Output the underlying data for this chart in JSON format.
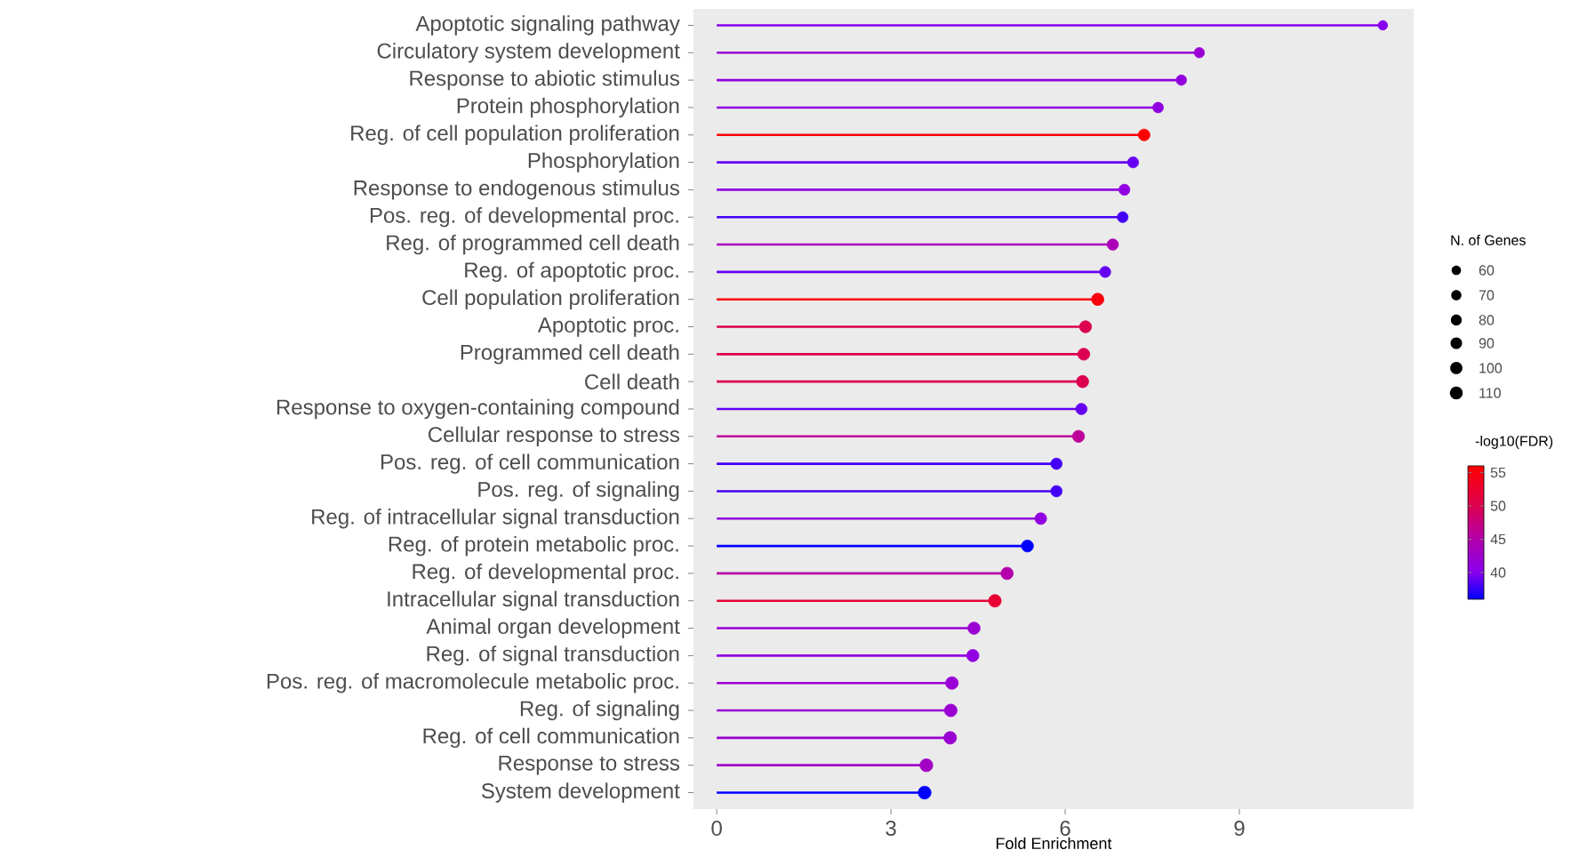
{
  "chart_data": {
    "type": "lollipop",
    "orientation": "horizontal",
    "xlabel": "Fold Enrichment",
    "categories": [
      "Apoptotic signaling pathway",
      "Circulatory system development",
      "Response to abiotic stimulus",
      "Protein phosphorylation",
      "Reg. of cell population proliferation",
      "Phosphorylation",
      "Response to endogenous stimulus",
      "Pos. reg. of developmental proc.",
      "Reg. of programmed cell death",
      "Reg. of apoptotic proc.",
      "Cell population proliferation",
      "Apoptotic proc.",
      "Programmed cell death",
      "Cell death",
      "Response to oxygen-containing compound",
      "Cellular response to stress",
      "Pos. reg. of cell communication",
      "Pos. reg. of signaling",
      "Reg. of intracellular signal transduction",
      "Reg. of protein metabolic proc.",
      "Reg. of developmental proc.",
      "Intracellular signal transduction",
      "Animal organ development",
      "Reg. of signal transduction",
      "Pos. reg. of macromolecule metabolic proc.",
      "Reg. of signaling",
      "Reg. of cell communication",
      "Response to stress",
      "System development"
    ],
    "values": [
      11.47,
      8.31,
      8.0,
      7.6,
      7.36,
      7.17,
      7.02,
      6.99,
      6.82,
      6.69,
      6.56,
      6.35,
      6.32,
      6.3,
      6.28,
      6.23,
      5.85,
      5.85,
      5.58,
      5.35,
      5.0,
      4.79,
      4.43,
      4.41,
      4.05,
      4.03,
      4.02,
      3.61,
      3.58
    ],
    "cvalues": [
      40,
      42,
      41,
      41,
      56,
      39,
      41,
      38,
      44,
      39,
      55,
      50,
      50,
      50,
      39,
      46,
      38,
      38,
      41,
      36,
      45,
      52,
      42,
      41,
      42,
      42,
      42,
      43,
      36
    ],
    "sizes": [
      60,
      70,
      72,
      75,
      90,
      80,
      80,
      78,
      85,
      80,
      100,
      95,
      95,
      98,
      85,
      95,
      85,
      85,
      90,
      95,
      100,
      105,
      100,
      100,
      105,
      105,
      105,
      110,
      110
    ],
    "size_legend": [
      60,
      70,
      80,
      90,
      100,
      110
    ],
    "legend_title": "N. of Genes",
    "clabel": "-log10(FDR)",
    "clim": [
      36,
      56
    ],
    "cticks": [
      {
        "value": 40,
        "label": "40"
      },
      {
        "value": 45,
        "label": "45"
      },
      {
        "value": 50,
        "label": "50"
      },
      {
        "value": 55,
        "label": "55"
      }
    ],
    "xlim": [
      -0.4,
      12.0
    ],
    "xticks": [
      0,
      3,
      6,
      9
    ]
  }
}
